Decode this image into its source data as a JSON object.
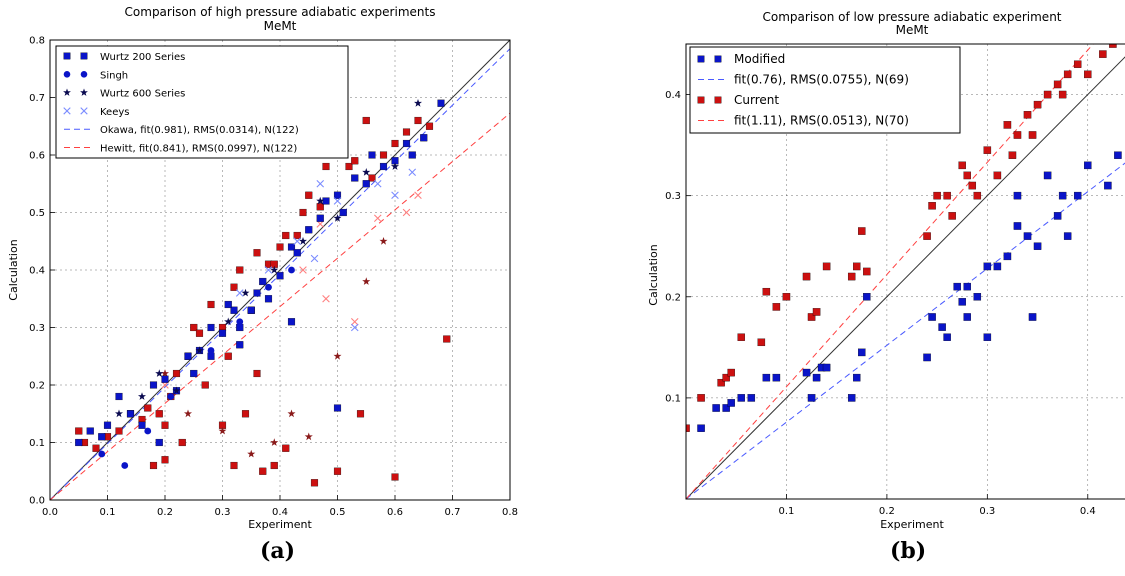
{
  "chart_data": [
    {
      "type": "scatter",
      "title": "Comparison of high pressure adiabatic experiments",
      "subtitle": "MeMt",
      "xlabel": "Experiment",
      "ylabel": "Calculation",
      "xlim": [
        0.0,
        0.8
      ],
      "ylim": [
        0.0,
        0.8
      ],
      "xticks": [
        "0.0",
        "0.1",
        "0.2",
        "0.3",
        "0.4",
        "0.5",
        "0.6",
        "0.7",
        "0.8"
      ],
      "yticks": [
        "0.0",
        "0.1",
        "0.2",
        "0.3",
        "0.4",
        "0.5",
        "0.6",
        "0.7",
        "0.8"
      ],
      "grid": true,
      "legend_position": "top-left",
      "panel_label": "(a)",
      "diagonal": true,
      "legend": [
        {
          "label": "Wurtz 200 Series",
          "marker": "square",
          "color": "#0a14c8"
        },
        {
          "label": "Singh",
          "marker": "circle",
          "color": "#0a14c8"
        },
        {
          "label": "Wurtz 600 Series",
          "marker": "star",
          "color": "#0a0a50"
        },
        {
          "label": "Keeys",
          "marker": "x",
          "color": "#7b8cff"
        },
        {
          "label": "Okawa, fit(0.981), RMS(0.0314), N(122)",
          "marker": "dash",
          "color": "#4a5aff"
        },
        {
          "label": "Hewitt, fit(0.841), RMS(0.0997), N(122)",
          "marker": "dash",
          "color": "#ff4040"
        }
      ],
      "fit_lines": [
        {
          "name": "Okawa, fit(0.981), RMS(0.0314), N(122)",
          "slope": 0.981,
          "color": "#4a5aff"
        },
        {
          "name": "Hewitt, fit(0.841), RMS(0.0997), N(122)",
          "slope": 0.841,
          "color": "#ff4040"
        }
      ],
      "series": [
        {
          "group": "blue",
          "marker": "square",
          "color": "#0a14c8",
          "x": [
            0.05,
            0.07,
            0.09,
            0.1,
            0.12,
            0.14,
            0.16,
            0.18,
            0.2,
            0.22,
            0.24,
            0.26,
            0.28,
            0.3,
            0.32,
            0.33,
            0.35,
            0.37,
            0.38,
            0.4,
            0.42,
            0.43,
            0.45,
            0.47,
            0.48,
            0.5,
            0.51,
            0.53,
            0.55,
            0.56,
            0.58,
            0.6,
            0.62,
            0.63,
            0.65,
            0.68,
            0.5,
            0.28,
            0.33,
            0.19,
            0.25,
            0.42,
            0.31,
            0.36
          ],
          "y": [
            0.1,
            0.12,
            0.11,
            0.13,
            0.18,
            0.15,
            0.13,
            0.2,
            0.21,
            0.19,
            0.25,
            0.26,
            0.3,
            0.29,
            0.33,
            0.3,
            0.33,
            0.38,
            0.35,
            0.39,
            0.44,
            0.43,
            0.47,
            0.49,
            0.52,
            0.53,
            0.5,
            0.56,
            0.55,
            0.6,
            0.58,
            0.59,
            0.62,
            0.6,
            0.63,
            0.69,
            0.16,
            0.25,
            0.27,
            0.1,
            0.22,
            0.31,
            0.34,
            0.36
          ]
        },
        {
          "group": "blue",
          "marker": "circle",
          "color": "#0a14c8",
          "x": [
            0.09,
            0.13,
            0.17,
            0.21,
            0.24,
            0.28,
            0.33,
            0.38,
            0.42
          ],
          "y": [
            0.08,
            0.06,
            0.12,
            0.18,
            0.25,
            0.26,
            0.31,
            0.37,
            0.4
          ]
        },
        {
          "group": "blue",
          "marker": "star",
          "color": "#0a0a50",
          "x": [
            0.12,
            0.16,
            0.19,
            0.22,
            0.26,
            0.31,
            0.34,
            0.39,
            0.44,
            0.47,
            0.5,
            0.55,
            0.6,
            0.64
          ],
          "y": [
            0.15,
            0.18,
            0.22,
            0.19,
            0.26,
            0.31,
            0.36,
            0.4,
            0.45,
            0.52,
            0.49,
            0.57,
            0.58,
            0.69
          ]
        },
        {
          "group": "blue",
          "marker": "x",
          "color": "#7b8cff",
          "x": [
            0.33,
            0.38,
            0.43,
            0.47,
            0.5,
            0.53,
            0.57,
            0.6,
            0.63,
            0.46
          ],
          "y": [
            0.36,
            0.4,
            0.45,
            0.55,
            0.52,
            0.3,
            0.55,
            0.53,
            0.57,
            0.42
          ]
        },
        {
          "group": "red",
          "marker": "square",
          "color": "#cc1010",
          "x": [
            0.05,
            0.06,
            0.08,
            0.1,
            0.12,
            0.14,
            0.16,
            0.17,
            0.19,
            0.2,
            0.21,
            0.22,
            0.24,
            0.25,
            0.26,
            0.28,
            0.3,
            0.32,
            0.33,
            0.35,
            0.36,
            0.38,
            0.39,
            0.4,
            0.41,
            0.43,
            0.44,
            0.45,
            0.47,
            0.48,
            0.5,
            0.52,
            0.53,
            0.55,
            0.56,
            0.58,
            0.6,
            0.62,
            0.64,
            0.66,
            0.69,
            0.6,
            0.54,
            0.46,
            0.41,
            0.39,
            0.37,
            0.34,
            0.32,
            0.3,
            0.27,
            0.23,
            0.2,
            0.18,
            0.36,
            0.31
          ],
          "y": [
            0.12,
            0.1,
            0.09,
            0.11,
            0.12,
            0.15,
            0.14,
            0.16,
            0.15,
            0.13,
            0.18,
            0.22,
            0.25,
            0.3,
            0.29,
            0.34,
            0.3,
            0.37,
            0.4,
            0.33,
            0.43,
            0.41,
            0.41,
            0.44,
            0.46,
            0.46,
            0.5,
            0.53,
            0.51,
            0.58,
            0.05,
            0.58,
            0.59,
            0.66,
            0.56,
            0.6,
            0.62,
            0.64,
            0.66,
            0.65,
            0.28,
            0.04,
            0.15,
            0.03,
            0.09,
            0.06,
            0.05,
            0.15,
            0.06,
            0.13,
            0.2,
            0.1,
            0.07,
            0.06,
            0.22,
            0.25
          ]
        },
        {
          "group": "red",
          "marker": "star",
          "color": "#8a1a1a",
          "x": [
            0.3,
            0.35,
            0.39,
            0.42,
            0.45,
            0.5,
            0.55,
            0.58,
            0.24,
            0.2
          ],
          "y": [
            0.12,
            0.08,
            0.1,
            0.15,
            0.11,
            0.25,
            0.38,
            0.45,
            0.15,
            0.22
          ]
        },
        {
          "group": "red",
          "marker": "x",
          "color": "#ff8080",
          "x": [
            0.4,
            0.44,
            0.48,
            0.53,
            0.57,
            0.62,
            0.64,
            0.47,
            0.2
          ],
          "y": [
            0.39,
            0.4,
            0.35,
            0.31,
            0.49,
            0.5,
            0.53,
            0.48,
            0.2
          ]
        }
      ]
    },
    {
      "type": "scatter",
      "title": "Comparison of low pressure adiabatic experiment",
      "subtitle": "MeMt",
      "xlabel": "Experiment",
      "ylabel": "Calculation",
      "xlim": [
        0.0,
        0.45
      ],
      "ylim": [
        0.0,
        0.45
      ],
      "xticks": [
        "0.1",
        "0.2",
        "0.3",
        "0.4"
      ],
      "yticks": [
        "0.1",
        "0.2",
        "0.3",
        "0.4"
      ],
      "grid": true,
      "legend_position": "top-left",
      "panel_label": "(b)",
      "diagonal": true,
      "legend": [
        {
          "label": "Modified",
          "marker": "square",
          "color": "#0a14c8"
        },
        {
          "label": "fit(0.76), RMS(0.0755), N(69)",
          "marker": "dash",
          "color": "#4a5aff"
        },
        {
          "label": "Current",
          "marker": "square",
          "color": "#cc1010"
        },
        {
          "label": "fit(1.11), RMS(0.0513), N(70)",
          "marker": "dash",
          "color": "#ff4040"
        }
      ],
      "fit_lines": [
        {
          "name": "fit(0.76), RMS(0.0755), N(69)",
          "slope": 0.76,
          "color": "#4a5aff"
        },
        {
          "name": "fit(1.11), RMS(0.0513), N(70)",
          "slope": 1.11,
          "color": "#ff4040"
        }
      ],
      "series": [
        {
          "name": "Modified",
          "marker": "square",
          "color": "#0a14c8",
          "x": [
            0.015,
            0.03,
            0.04,
            0.045,
            0.055,
            0.065,
            0.08,
            0.09,
            0.12,
            0.125,
            0.13,
            0.135,
            0.14,
            0.165,
            0.17,
            0.175,
            0.18,
            0.24,
            0.245,
            0.255,
            0.26,
            0.27,
            0.275,
            0.28,
            0.29,
            0.3,
            0.31,
            0.32,
            0.33,
            0.34,
            0.35,
            0.36,
            0.37,
            0.375,
            0.38,
            0.39,
            0.4,
            0.42,
            0.43,
            0.28,
            0.3,
            0.33,
            0.345
          ],
          "y": [
            0.07,
            0.09,
            0.09,
            0.095,
            0.1,
            0.1,
            0.12,
            0.12,
            0.125,
            0.1,
            0.12,
            0.13,
            0.13,
            0.1,
            0.12,
            0.145,
            0.2,
            0.14,
            0.18,
            0.17,
            0.16,
            0.21,
            0.195,
            0.21,
            0.2,
            0.16,
            0.23,
            0.24,
            0.27,
            0.26,
            0.25,
            0.32,
            0.28,
            0.3,
            0.26,
            0.3,
            0.33,
            0.31,
            0.34,
            0.18,
            0.23,
            0.3,
            0.18
          ]
        },
        {
          "name": "Current",
          "marker": "square",
          "color": "#cc1010",
          "x": [
            0.0,
            0.015,
            0.035,
            0.04,
            0.045,
            0.055,
            0.075,
            0.08,
            0.09,
            0.1,
            0.12,
            0.125,
            0.13,
            0.14,
            0.165,
            0.17,
            0.175,
            0.18,
            0.24,
            0.245,
            0.25,
            0.26,
            0.265,
            0.275,
            0.28,
            0.285,
            0.29,
            0.3,
            0.31,
            0.32,
            0.325,
            0.33,
            0.34,
            0.345,
            0.35,
            0.36,
            0.37,
            0.375,
            0.38,
            0.39,
            0.4,
            0.415,
            0.425
          ],
          "y": [
            0.07,
            0.1,
            0.115,
            0.12,
            0.125,
            0.16,
            0.155,
            0.205,
            0.19,
            0.2,
            0.22,
            0.18,
            0.185,
            0.23,
            0.22,
            0.23,
            0.265,
            0.225,
            0.26,
            0.29,
            0.3,
            0.3,
            0.28,
            0.33,
            0.32,
            0.31,
            0.3,
            0.345,
            0.32,
            0.37,
            0.34,
            0.36,
            0.38,
            0.36,
            0.39,
            0.4,
            0.41,
            0.4,
            0.42,
            0.43,
            0.42,
            0.44,
            0.45
          ]
        }
      ]
    }
  ]
}
